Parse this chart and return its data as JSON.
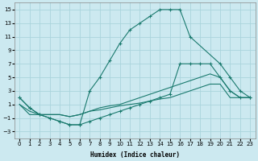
{
  "xlabel": "Humidex (Indice chaleur)",
  "xlim": [
    -0.5,
    23.5
  ],
  "ylim": [
    -4,
    16
  ],
  "xticks": [
    0,
    1,
    2,
    3,
    4,
    5,
    6,
    7,
    8,
    9,
    10,
    11,
    12,
    13,
    14,
    15,
    16,
    17,
    18,
    19,
    20,
    21,
    22,
    23
  ],
  "yticks": [
    -3,
    -1,
    1,
    3,
    5,
    7,
    9,
    11,
    13,
    15
  ],
  "line_color": "#1a7a6e",
  "bg_color": "#cce9f0",
  "grid_color": "#aad4dc",
  "lines": [
    {
      "x": [
        0,
        1,
        2,
        3,
        4,
        5,
        6,
        7,
        8,
        9,
        10,
        11,
        12,
        13,
        14,
        15,
        16,
        17,
        20,
        21,
        22,
        23
      ],
      "y": [
        2,
        0.5,
        -0.5,
        -1,
        -1.5,
        -2,
        -2,
        3,
        5,
        7.5,
        10,
        12,
        13,
        14,
        15,
        15,
        15,
        11,
        7,
        5,
        3,
        2
      ],
      "marker": "+"
    },
    {
      "x": [
        0,
        1,
        2,
        3,
        4,
        5,
        6,
        7,
        8,
        9,
        10,
        11,
        12,
        13,
        14,
        15,
        16,
        17,
        18,
        19,
        20,
        21,
        22,
        23
      ],
      "y": [
        2,
        0.5,
        -0.5,
        -1,
        -1.5,
        -2,
        -2,
        -1.5,
        -1,
        -0.5,
        0,
        0.5,
        1,
        1.5,
        2,
        2.5,
        7,
        7,
        7,
        7,
        5,
        3,
        2,
        2
      ],
      "marker": "+"
    },
    {
      "x": [
        0,
        1,
        2,
        3,
        4,
        5,
        6,
        7,
        8,
        9,
        10,
        11,
        12,
        13,
        14,
        15,
        16,
        17,
        18,
        19,
        20,
        21,
        22,
        23
      ],
      "y": [
        1,
        0,
        -0.5,
        -0.5,
        -0.5,
        -0.8,
        -0.5,
        0,
        0.5,
        0.8,
        1,
        1.5,
        2,
        2.5,
        3,
        3.5,
        4,
        4.5,
        5,
        5.5,
        5,
        3,
        2,
        2
      ],
      "marker": null
    },
    {
      "x": [
        0,
        1,
        2,
        3,
        4,
        5,
        6,
        7,
        8,
        9,
        10,
        11,
        12,
        13,
        14,
        15,
        16,
        17,
        18,
        19,
        20,
        21,
        22,
        23
      ],
      "y": [
        1,
        -0.5,
        -0.5,
        -0.5,
        -0.5,
        -0.8,
        -0.5,
        0,
        0.2,
        0.5,
        0.8,
        1,
        1.2,
        1.5,
        1.8,
        2,
        2.5,
        3,
        3.5,
        4,
        4,
        2,
        2,
        2
      ],
      "marker": null
    }
  ]
}
